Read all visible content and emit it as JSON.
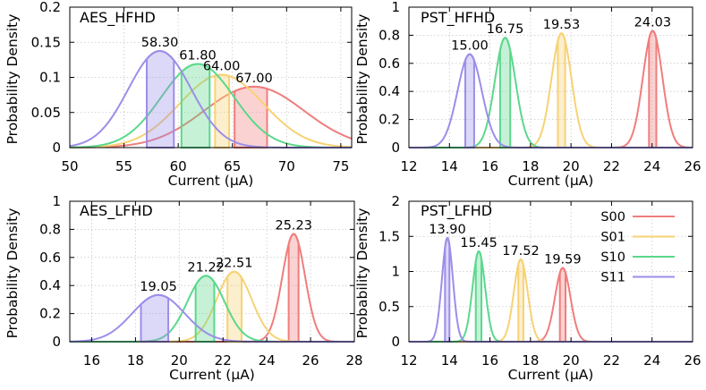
{
  "legend": [
    {
      "label": "S00",
      "color": "#f07d7d"
    },
    {
      "label": "S01",
      "color": "#f7d274"
    },
    {
      "label": "S10",
      "color": "#5bd88d"
    },
    {
      "label": "S11",
      "color": "#9c8ee8"
    }
  ],
  "chart_data": [
    {
      "type": "area",
      "title": "AES_HFHD",
      "xlabel": "Current (µA)",
      "ylabel": "Probability Density",
      "xlim": [
        50,
        76
      ],
      "ylim": [
        0,
        0.2
      ],
      "xticks": [
        50,
        55,
        60,
        65,
        70,
        75
      ],
      "yticks": [
        0,
        0.05,
        0.1,
        0.15,
        0.2
      ],
      "ytick_labels": [
        "0",
        "0.05",
        "0.1",
        "0.15",
        "0.2"
      ],
      "grid": true,
      "series": [
        {
          "name": "S00",
          "mean": 67.0,
          "std": 4.6,
          "label": "67.00",
          "band": [
            65.2,
            68.2
          ]
        },
        {
          "name": "S01",
          "mean": 64.0,
          "std": 3.85,
          "label": "64.00",
          "band": [
            63.4,
            64.7
          ]
        },
        {
          "name": "S10",
          "mean": 61.8,
          "std": 3.35,
          "label": "61.80",
          "band": [
            60.3,
            62.9
          ]
        },
        {
          "name": "S11",
          "mean": 58.3,
          "std": 2.9,
          "label": "58.30",
          "band": [
            57.1,
            59.6
          ]
        }
      ]
    },
    {
      "type": "area",
      "title": "PST_HFHD",
      "xlabel": "Current (µA)",
      "ylabel": "Probability Density",
      "xlim": [
        12,
        26
      ],
      "ylim": [
        0,
        1
      ],
      "xticks": [
        12,
        14,
        16,
        18,
        20,
        22,
        24,
        26
      ],
      "yticks": [
        0,
        0.2,
        0.4,
        0.6,
        0.8,
        1
      ],
      "ytick_labels": [
        "0",
        "0.2",
        "0.4",
        "0.6",
        "0.8",
        "1"
      ],
      "grid": true,
      "series": [
        {
          "name": "S00",
          "mean": 24.03,
          "std": 0.48,
          "label": "24.03",
          "band": [
            23.85,
            24.21
          ]
        },
        {
          "name": "S01",
          "mean": 19.53,
          "std": 0.49,
          "label": "19.53",
          "band": [
            19.35,
            19.71
          ]
        },
        {
          "name": "S10",
          "mean": 16.75,
          "std": 0.51,
          "label": "16.75",
          "band": [
            16.5,
            17.0
          ]
        },
        {
          "name": "S11",
          "mean": 15.0,
          "std": 0.6,
          "label": "15.00",
          "band": [
            14.78,
            15.22
          ]
        }
      ]
    },
    {
      "type": "area",
      "title": "AES_LFHD",
      "xlabel": "Current (µA)",
      "ylabel": "Probability Density",
      "xlim": [
        15,
        28
      ],
      "ylim": [
        0,
        1
      ],
      "xticks": [
        16,
        18,
        20,
        22,
        24,
        26,
        28
      ],
      "yticks": [
        0,
        0.2,
        0.4,
        0.6,
        0.8,
        1
      ],
      "ytick_labels": [
        "0",
        "0.2",
        "0.4",
        "0.6",
        "0.8",
        "1"
      ],
      "grid": true,
      "series": [
        {
          "name": "S00",
          "mean": 25.23,
          "std": 0.52,
          "label": "25.23",
          "band": [
            25.0,
            25.45
          ]
        },
        {
          "name": "S01",
          "mean": 22.51,
          "std": 0.8,
          "label": "22.51",
          "band": [
            22.2,
            22.85
          ]
        },
        {
          "name": "S10",
          "mean": 21.22,
          "std": 0.85,
          "label": "21.22",
          "band": [
            20.75,
            21.6
          ]
        },
        {
          "name": "S11",
          "mean": 19.05,
          "std": 1.2,
          "label": "19.05",
          "band": [
            18.25,
            19.5
          ]
        }
      ]
    },
    {
      "type": "area",
      "title": "PST_LFHD",
      "xlabel": "Current (µA)",
      "ylabel": "Probability Density",
      "xlim": [
        12,
        26
      ],
      "ylim": [
        0,
        2
      ],
      "xticks": [
        12,
        14,
        16,
        18,
        20,
        22,
        24,
        26
      ],
      "yticks": [
        0,
        0.5,
        1,
        1.5,
        2
      ],
      "ytick_labels": [
        "0",
        "0.5",
        "1",
        "1.5",
        "2"
      ],
      "grid": true,
      "series": [
        {
          "name": "S00",
          "mean": 19.59,
          "std": 0.38,
          "label": "19.59",
          "band": [
            19.45,
            19.73
          ]
        },
        {
          "name": "S01",
          "mean": 17.52,
          "std": 0.34,
          "label": "17.52",
          "band": [
            17.4,
            17.65
          ]
        },
        {
          "name": "S10",
          "mean": 15.45,
          "std": 0.31,
          "label": "15.45",
          "band": [
            15.3,
            15.58
          ]
        },
        {
          "name": "S11",
          "mean": 13.9,
          "std": 0.27,
          "label": "13.90",
          "band": [
            13.78,
            14.0
          ]
        }
      ]
    }
  ]
}
